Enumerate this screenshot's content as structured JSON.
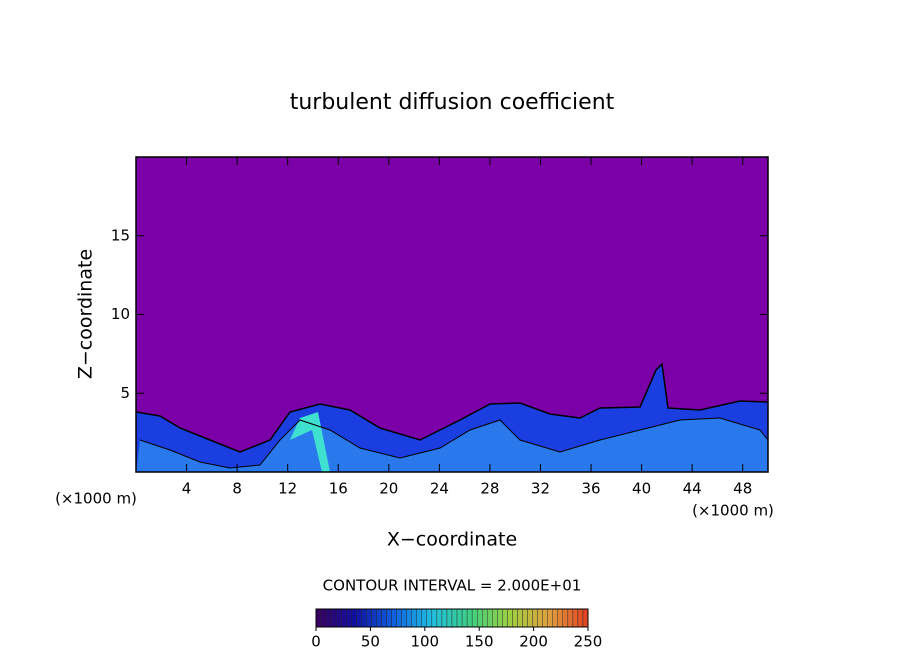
{
  "chart_data": {
    "type": "contour",
    "title": "turbulent diffusion coefficient",
    "x_label": "X−coordinate",
    "y_label": "Z−coordinate",
    "x_unit": "(×1000 m)",
    "y_unit": "(×1000 m)",
    "xlim": [
      0,
      50
    ],
    "ylim": [
      0,
      20
    ],
    "xticks": [
      4,
      8,
      12,
      16,
      20,
      24,
      28,
      32,
      36,
      40,
      44,
      48
    ],
    "yticks": [
      5,
      10,
      15
    ],
    "contour_interval": "CONTOUR INTERVAL = 2.000E+01",
    "background_color": "#7c00a8",
    "colorbar": {
      "clim": [
        0,
        250
      ],
      "ticks": [
        0,
        50,
        100,
        150,
        200,
        250
      ],
      "colors": [
        "#3a0060",
        "#1010a0",
        "#1060e0",
        "#20c0e0",
        "#40d080",
        "#a0d040",
        "#e0a040",
        "#e04020"
      ]
    }
  }
}
